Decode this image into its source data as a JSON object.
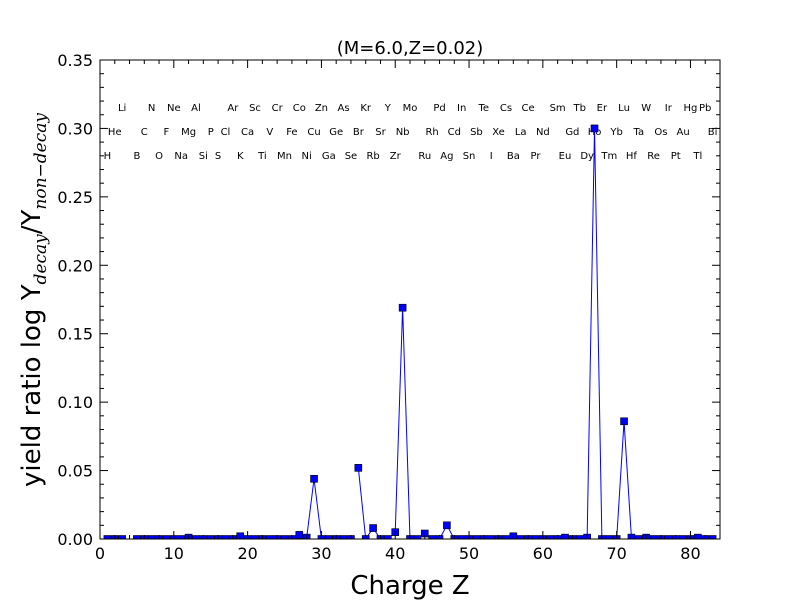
{
  "chart_data": {
    "type": "line",
    "title": "(M=6.0,Z=0.02)",
    "xlabel": "Charge Z",
    "ylabel": {
      "prefix": "yield ratio log Y",
      "sub1": "decay",
      "middle": "/Y",
      "sub2": "non−decay"
    },
    "xlim": [
      0,
      84
    ],
    "ylim": [
      0,
      0.35
    ],
    "x_ticks": [
      0,
      10,
      20,
      30,
      40,
      50,
      60,
      70,
      80
    ],
    "x_tick_labels": [
      "0",
      "10",
      "20",
      "30",
      "40",
      "50",
      "60",
      "70",
      "80"
    ],
    "y_ticks": [
      0.0,
      0.05,
      0.1,
      0.15,
      0.2,
      0.25,
      0.3,
      0.35
    ],
    "y_tick_labels": [
      "0.00",
      "0.05",
      "0.10",
      "0.15",
      "0.20",
      "0.25",
      "0.30",
      "0.35"
    ],
    "grid": false,
    "series_color": "#0000ff",
    "marker": "square",
    "segments": [
      {
        "x": [
          1,
          2,
          3
        ],
        "y": [
          0,
          0,
          0
        ]
      },
      {
        "x": [
          5,
          6,
          7,
          8,
          9,
          10,
          11,
          12,
          13,
          14,
          15,
          16,
          17,
          18,
          19,
          20,
          21,
          22,
          23,
          24,
          25,
          26,
          27,
          28,
          29,
          30,
          31,
          32,
          33,
          34
        ],
        "y": [
          0,
          0,
          0,
          0,
          0,
          0,
          0,
          0.001,
          0,
          0,
          0,
          0,
          0,
          0,
          0.002,
          0,
          0,
          0,
          0,
          0,
          0,
          0,
          0.003,
          0.001,
          0.044,
          0,
          0,
          0,
          0,
          0
        ]
      },
      {
        "x": [
          35,
          36,
          37,
          38,
          39,
          40,
          41,
          42,
          43,
          44,
          45,
          46,
          47,
          48,
          49,
          50,
          51,
          52,
          53,
          54,
          55,
          56,
          57,
          58,
          59,
          60,
          61
        ],
        "y": [
          0.052,
          0,
          0.008,
          0,
          0,
          0.005,
          0.169,
          0,
          0,
          0.004,
          0,
          0,
          0.01,
          0,
          0,
          0,
          0,
          0,
          0,
          0,
          0,
          0.002,
          0,
          0,
          0,
          0,
          0
        ]
      },
      {
        "x": [
          62,
          63,
          64,
          65,
          66,
          67,
          68
        ],
        "y": [
          0,
          0.001,
          0,
          0,
          0.001,
          0.3,
          0
        ]
      },
      {
        "x": [
          69,
          70,
          71,
          72,
          73,
          74,
          75,
          76,
          77,
          78,
          79,
          80,
          81,
          82,
          83
        ],
        "y": [
          0,
          0,
          0.086,
          0.001,
          0,
          0.001,
          0,
          0,
          0,
          0,
          0,
          0,
          0.001,
          0,
          0
        ]
      }
    ],
    "element_labels": {
      "row1": [
        {
          "z": 3,
          "s": "Li"
        },
        {
          "z": 7,
          "s": "N"
        },
        {
          "z": 10,
          "s": "Ne"
        },
        {
          "z": 13,
          "s": "Al"
        },
        {
          "z": 18,
          "s": "Ar"
        },
        {
          "z": 21,
          "s": "Sc"
        },
        {
          "z": 24,
          "s": "Cr"
        },
        {
          "z": 27,
          "s": "Co"
        },
        {
          "z": 30,
          "s": "Zn"
        },
        {
          "z": 33,
          "s": "As"
        },
        {
          "z": 36,
          "s": "Kr"
        },
        {
          "z": 39,
          "s": "Y"
        },
        {
          "z": 42,
          "s": "Mo"
        },
        {
          "z": 46,
          "s": "Pd"
        },
        {
          "z": 49,
          "s": "In"
        },
        {
          "z": 52,
          "s": "Te"
        },
        {
          "z": 55,
          "s": "Cs"
        },
        {
          "z": 58,
          "s": "Ce"
        },
        {
          "z": 62,
          "s": "Sm"
        },
        {
          "z": 65,
          "s": "Tb"
        },
        {
          "z": 68,
          "s": "Er"
        },
        {
          "z": 71,
          "s": "Lu"
        },
        {
          "z": 74,
          "s": "W"
        },
        {
          "z": 77,
          "s": "Ir"
        },
        {
          "z": 80,
          "s": "Hg"
        },
        {
          "z": 82,
          "s": "Pb"
        }
      ],
      "row2": [
        {
          "z": 2,
          "s": "He"
        },
        {
          "z": 6,
          "s": "C"
        },
        {
          "z": 9,
          "s": "F"
        },
        {
          "z": 12,
          "s": "Mg"
        },
        {
          "z": 15,
          "s": "P"
        },
        {
          "z": 17,
          "s": "Cl"
        },
        {
          "z": 20,
          "s": "Ca"
        },
        {
          "z": 23,
          "s": "V"
        },
        {
          "z": 26,
          "s": "Fe"
        },
        {
          "z": 29,
          "s": "Cu"
        },
        {
          "z": 32,
          "s": "Ge"
        },
        {
          "z": 35,
          "s": "Br"
        },
        {
          "z": 38,
          "s": "Sr"
        },
        {
          "z": 41,
          "s": "Nb"
        },
        {
          "z": 45,
          "s": "Rh"
        },
        {
          "z": 48,
          "s": "Cd"
        },
        {
          "z": 51,
          "s": "Sb"
        },
        {
          "z": 54,
          "s": "Xe"
        },
        {
          "z": 57,
          "s": "La"
        },
        {
          "z": 60,
          "s": "Nd"
        },
        {
          "z": 64,
          "s": "Gd"
        },
        {
          "z": 67,
          "s": "Ho"
        },
        {
          "z": 70,
          "s": "Yb"
        },
        {
          "z": 73,
          "s": "Ta"
        },
        {
          "z": 76,
          "s": "Os"
        },
        {
          "z": 79,
          "s": "Au"
        },
        {
          "z": 83,
          "s": "Bi"
        }
      ],
      "row3": [
        {
          "z": 1,
          "s": "H"
        },
        {
          "z": 5,
          "s": "B"
        },
        {
          "z": 8,
          "s": "O"
        },
        {
          "z": 11,
          "s": "Na"
        },
        {
          "z": 14,
          "s": "Si"
        },
        {
          "z": 16,
          "s": "S"
        },
        {
          "z": 19,
          "s": "K"
        },
        {
          "z": 22,
          "s": "Ti"
        },
        {
          "z": 25,
          "s": "Mn"
        },
        {
          "z": 28,
          "s": "Ni"
        },
        {
          "z": 31,
          "s": "Ga"
        },
        {
          "z": 34,
          "s": "Se"
        },
        {
          "z": 37,
          "s": "Rb"
        },
        {
          "z": 40,
          "s": "Zr"
        },
        {
          "z": 44,
          "s": "Ru"
        },
        {
          "z": 47,
          "s": "Ag"
        },
        {
          "z": 50,
          "s": "Sn"
        },
        {
          "z": 53,
          "s": "I"
        },
        {
          "z": 56,
          "s": "Ba"
        },
        {
          "z": 59,
          "s": "Pr"
        },
        {
          "z": 63,
          "s": "Eu"
        },
        {
          "z": 66,
          "s": "Dy"
        },
        {
          "z": 69,
          "s": "Tm"
        },
        {
          "z": 72,
          "s": "Hf"
        },
        {
          "z": 75,
          "s": "Re"
        },
        {
          "z": 78,
          "s": "Pt"
        },
        {
          "z": 81,
          "s": "Tl"
        }
      ]
    }
  }
}
